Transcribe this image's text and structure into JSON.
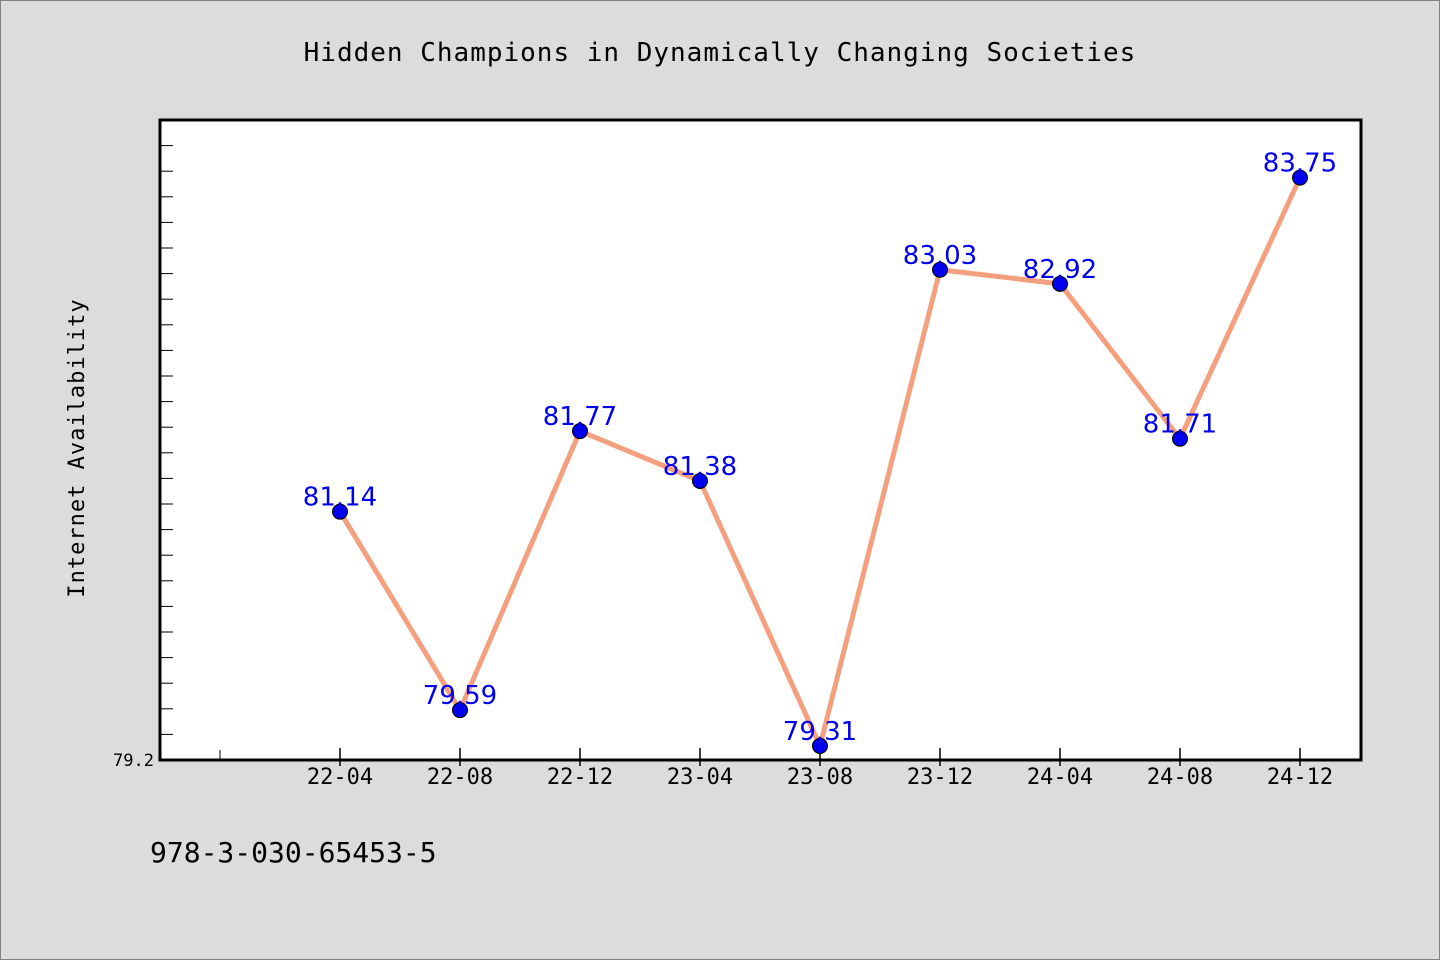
{
  "chart_data": {
    "type": "line",
    "title": "Hidden Champions in Dynamically Changing Societies",
    "xlabel": "",
    "ylabel": "Internet Availability",
    "categories": [
      "22-04",
      "22-08",
      "22-12",
      "23-04",
      "23-08",
      "23-12",
      "24-04",
      "24-08",
      "24-12"
    ],
    "series": [
      {
        "values": [
          81.14,
          79.59,
          81.77,
          81.38,
          79.31,
          83.03,
          82.92,
          81.71,
          83.75
        ],
        "line_color": "#f4a07e",
        "marker_color": "#0000ee"
      }
    ],
    "data_labels": [
      "81.14",
      "79.59",
      "81.77",
      "81.38",
      "79.31",
      "83.03",
      "82.92",
      "81.71",
      "83.75"
    ],
    "y_tick_labels": [
      "79.2"
    ],
    "ylim": [
      79.2,
      84.2
    ],
    "grid": false,
    "label_color": "#0000ee"
  },
  "footnote": "978-3-030-65453-5"
}
